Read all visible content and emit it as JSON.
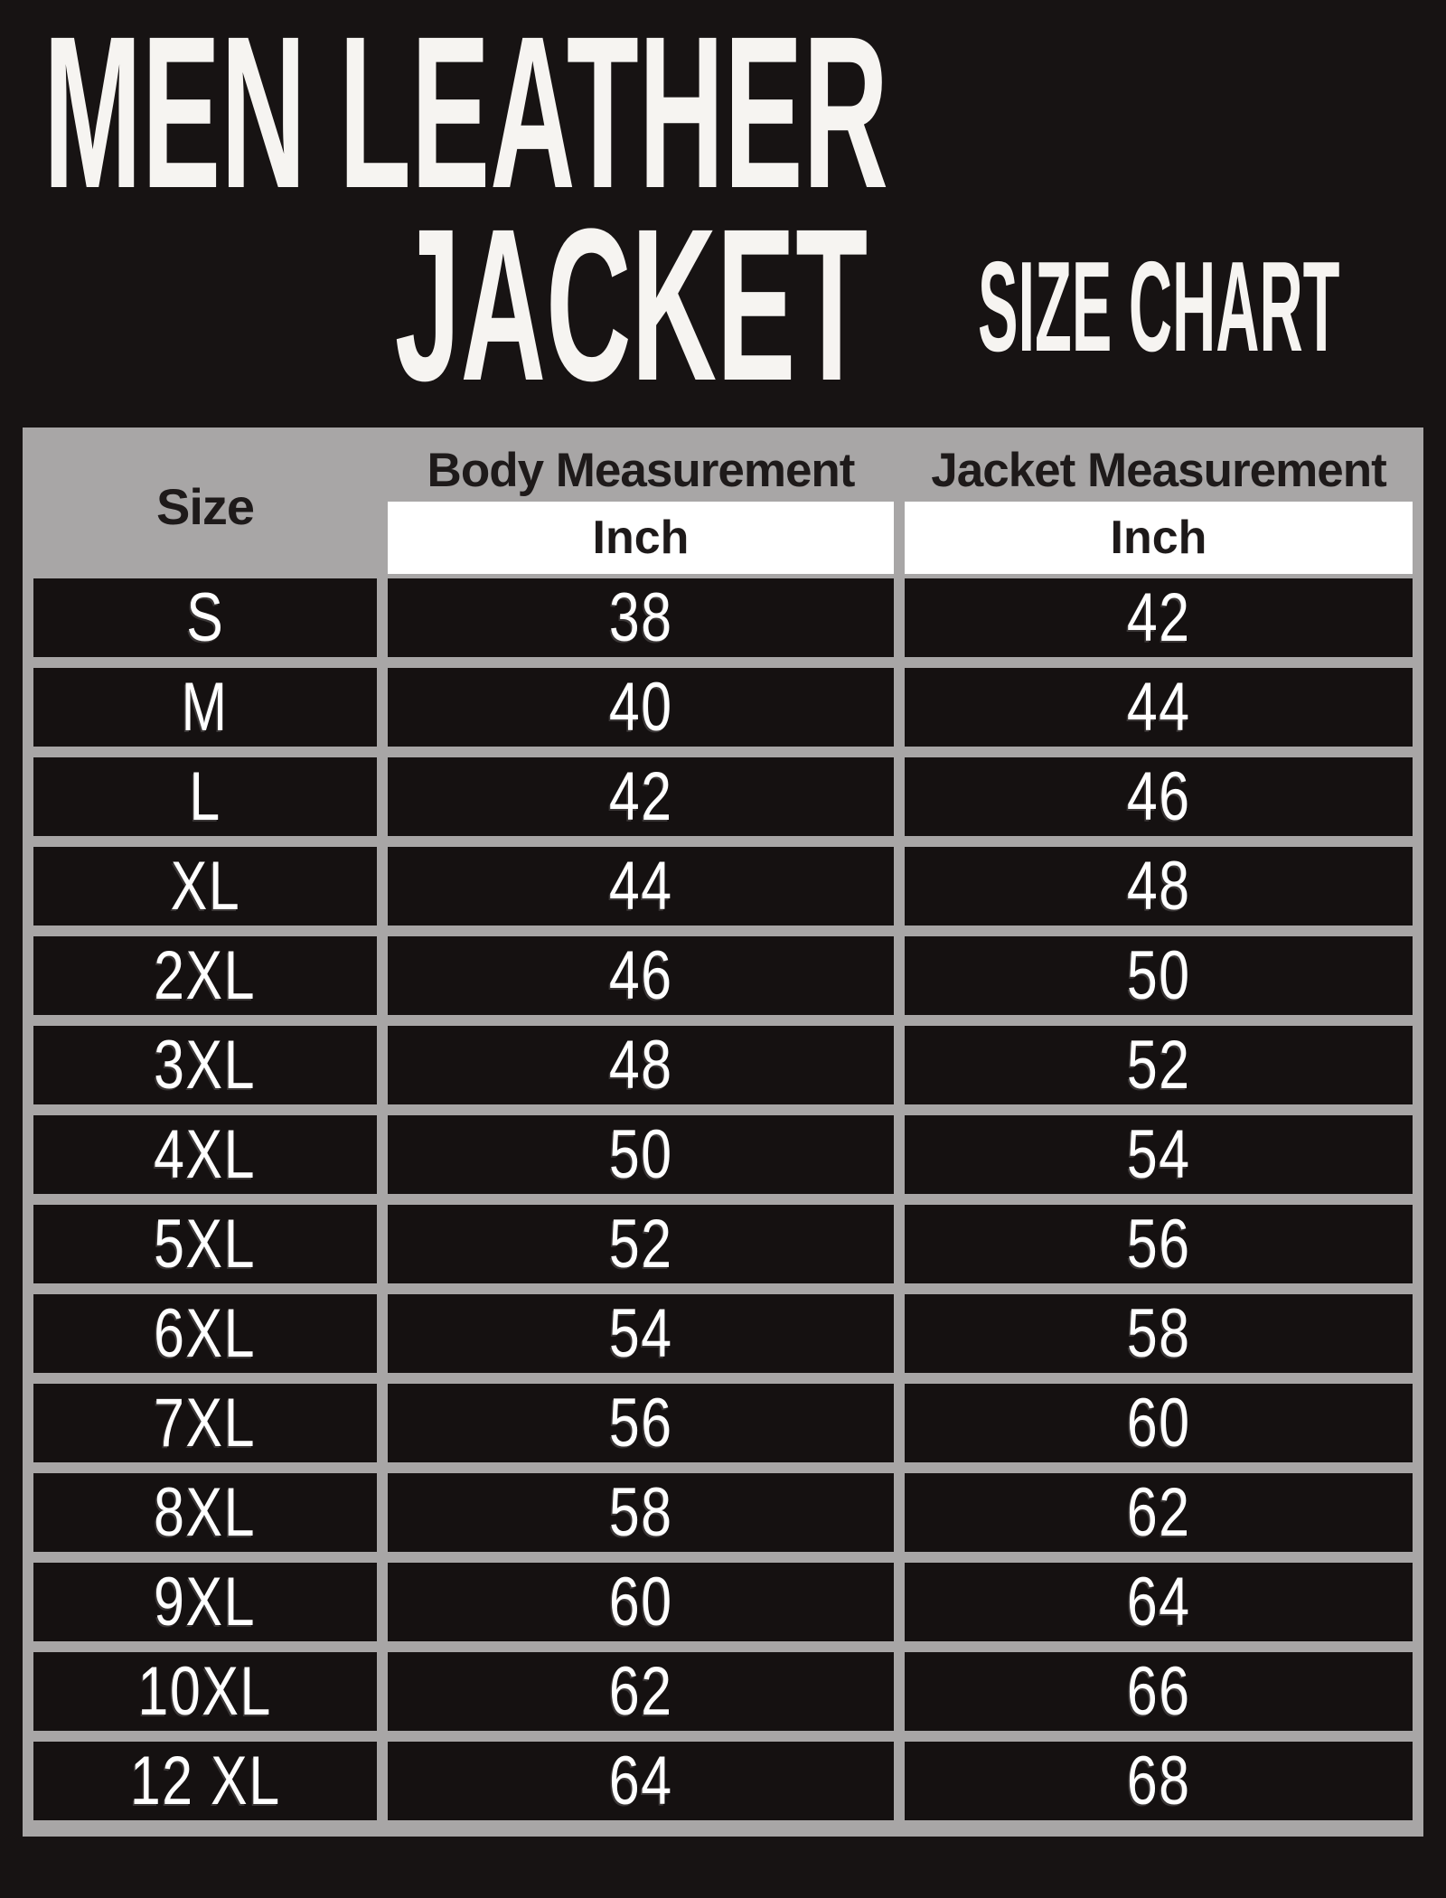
{
  "header": {
    "title_line1": "MEN LEATHER",
    "title_line2": "JACKET",
    "subtitle": "SIZE CHART"
  },
  "table": {
    "columns": {
      "size": "Size",
      "body": "Body Measurement",
      "jacket": "Jacket Measurement",
      "unit": "Inch"
    },
    "rows": [
      {
        "size": "S",
        "body": "38",
        "jacket": "42"
      },
      {
        "size": "M",
        "body": "40",
        "jacket": "44"
      },
      {
        "size": "L",
        "body": "42",
        "jacket": "46"
      },
      {
        "size": "XL",
        "body": "44",
        "jacket": "48"
      },
      {
        "size": "2XL",
        "body": "46",
        "jacket": "50"
      },
      {
        "size": "3XL",
        "body": "48",
        "jacket": "52"
      },
      {
        "size": "4XL",
        "body": "50",
        "jacket": "54"
      },
      {
        "size": "5XL",
        "body": "52",
        "jacket": "56"
      },
      {
        "size": "6XL",
        "body": "54",
        "jacket": "58"
      },
      {
        "size": "7XL",
        "body": "56",
        "jacket": "60"
      },
      {
        "size": "8XL",
        "body": "58",
        "jacket": "62"
      },
      {
        "size": "9XL",
        "body": "60",
        "jacket": "64"
      },
      {
        "size": "10XL",
        "body": "62",
        "jacket": "66"
      },
      {
        "size": "12 XL",
        "body": "64",
        "jacket": "68"
      }
    ]
  },
  "colors": {
    "page_background": "#171313",
    "table_frame": "#a8a6a6",
    "cell_background": "#151111",
    "unit_background": "#ffffff",
    "header_text": "#1e1a1a",
    "cell_text": "#ffffff",
    "title_text": "#f6f4f1"
  },
  "chart_data": {
    "type": "table",
    "title": "Men Leather Jacket Size Chart",
    "columns": [
      "Size",
      "Body Measurement (Inch)",
      "Jacket Measurement (Inch)"
    ],
    "categories": [
      "S",
      "M",
      "L",
      "XL",
      "2XL",
      "3XL",
      "4XL",
      "5XL",
      "6XL",
      "7XL",
      "8XL",
      "9XL",
      "10XL",
      "12 XL"
    ],
    "series": [
      {
        "name": "Body Measurement (Inch)",
        "values": [
          38,
          40,
          42,
          44,
          46,
          48,
          50,
          52,
          54,
          56,
          58,
          60,
          62,
          64
        ]
      },
      {
        "name": "Jacket Measurement (Inch)",
        "values": [
          42,
          44,
          46,
          48,
          50,
          52,
          54,
          56,
          58,
          60,
          62,
          64,
          66,
          68
        ]
      }
    ],
    "layout": {
      "unit_row": "Inch",
      "grid": "gray frame with black cells",
      "legend_position": "none"
    }
  }
}
